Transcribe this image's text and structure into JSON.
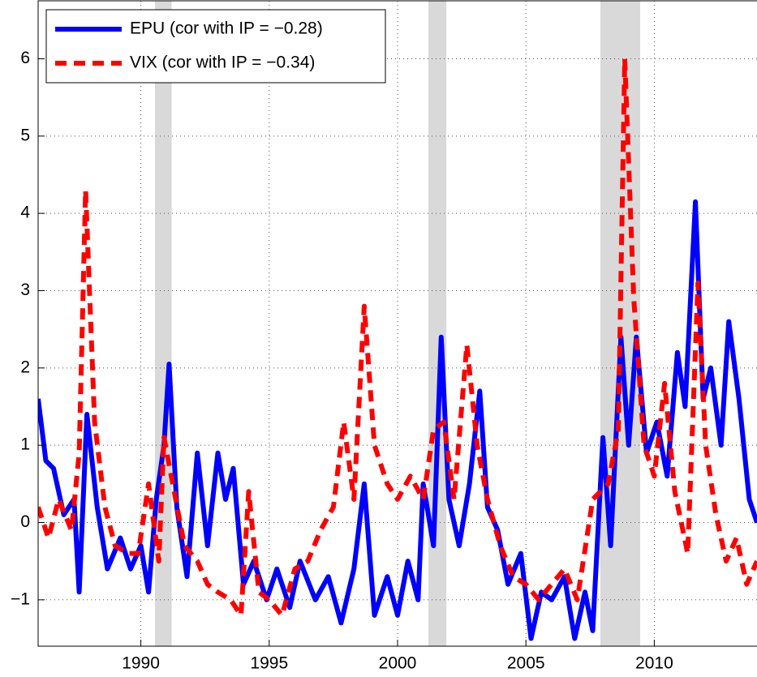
{
  "chart_data": {
    "type": "line",
    "xlim": [
      1986,
      2014
    ],
    "xticks": [
      1990,
      1995,
      2000,
      2005,
      2010
    ],
    "ylim": [
      -1.6,
      6.75
    ],
    "yticks": [
      {
        "value": -1,
        "label": "−1"
      },
      0,
      1,
      2,
      3,
      4,
      5,
      6
    ],
    "grid": true,
    "legend": "upper-left",
    "shaded_periods": [
      [
        1990.55,
        1991.2
      ],
      [
        2001.2,
        2001.9
      ],
      [
        2007.9,
        2009.45
      ]
    ],
    "shade_color": "#d9d9d9",
    "series": [
      {
        "name": "EPU (cor with IP = −0.28)",
        "color": "#0000ff",
        "dash": "solid",
        "x": [
          1986.0,
          1986.3,
          1986.6,
          1987.0,
          1987.4,
          1987.6,
          1987.9,
          1988.3,
          1988.7,
          1989.2,
          1989.6,
          1990.0,
          1990.3,
          1990.6,
          1990.9,
          1991.1,
          1991.4,
          1991.8,
          1992.2,
          1992.6,
          1993.0,
          1993.3,
          1993.6,
          1994.0,
          1994.4,
          1994.9,
          1995.3,
          1995.8,
          1996.2,
          1996.8,
          1997.3,
          1997.8,
          1998.3,
          1998.7,
          1999.1,
          1999.6,
          2000.0,
          2000.4,
          2000.8,
          2001.0,
          2001.4,
          2001.7,
          2002.0,
          2002.4,
          2002.8,
          2003.2,
          2003.5,
          2003.9,
          2004.3,
          2004.8,
          2005.2,
          2005.6,
          2006.0,
          2006.5,
          2006.9,
          2007.3,
          2007.6,
          2008.0,
          2008.3,
          2008.7,
          2009.0,
          2009.3,
          2009.7,
          2010.1,
          2010.5,
          2010.9,
          2011.2,
          2011.6,
          2011.9,
          2012.2,
          2012.6,
          2012.9,
          2013.3,
          2013.7,
          2014.0
        ],
        "values": [
          1.6,
          0.8,
          0.7,
          0.1,
          0.3,
          -0.9,
          1.4,
          0.2,
          -0.6,
          -0.2,
          -0.6,
          -0.3,
          -0.9,
          0.3,
          1.0,
          2.05,
          0.2,
          -0.7,
          0.9,
          -0.3,
          0.9,
          0.3,
          0.7,
          -0.8,
          -0.5,
          -1.0,
          -0.6,
          -1.1,
          -0.5,
          -1.0,
          -0.7,
          -1.3,
          -0.6,
          0.5,
          -1.2,
          -0.7,
          -1.2,
          -0.5,
          -1.0,
          0.5,
          -0.3,
          2.4,
          0.3,
          -0.3,
          0.5,
          1.7,
          0.2,
          -0.1,
          -0.8,
          -0.4,
          -1.5,
          -0.9,
          -1.0,
          -0.7,
          -1.5,
          -0.9,
          -1.4,
          1.1,
          -0.3,
          2.4,
          1.0,
          2.4,
          0.9,
          1.3,
          0.6,
          2.2,
          1.5,
          4.15,
          1.6,
          2.0,
          1.0,
          2.6,
          1.6,
          0.3,
          0.0
        ]
      },
      {
        "name": "VIX (cor with IP = −0.34)",
        "color": "#ff0000",
        "dash": "dashed",
        "x": [
          1986.0,
          1986.4,
          1986.8,
          1987.3,
          1987.6,
          1987.85,
          1988.2,
          1988.6,
          1989.0,
          1989.5,
          1989.9,
          1990.3,
          1990.7,
          1990.9,
          1991.3,
          1991.7,
          1992.2,
          1992.6,
          1993.0,
          1993.5,
          1993.9,
          1994.2,
          1994.6,
          1995.0,
          1995.5,
          1996.0,
          1996.5,
          1997.0,
          1997.5,
          1997.9,
          1998.3,
          1998.7,
          1999.1,
          1999.6,
          2000.0,
          2000.5,
          2001.0,
          2001.4,
          2001.8,
          2002.2,
          2002.7,
          2003.1,
          2003.5,
          2004.0,
          2004.5,
          2005.0,
          2005.5,
          2006.0,
          2006.5,
          2007.0,
          2007.6,
          2008.2,
          2008.6,
          2008.85,
          2009.2,
          2009.6,
          2010.0,
          2010.4,
          2010.8,
          2011.3,
          2011.7,
          2012.0,
          2012.4,
          2012.8,
          2013.2,
          2013.6,
          2014.0
        ],
        "values": [
          0.2,
          -0.2,
          0.3,
          -0.1,
          0.9,
          4.3,
          1.3,
          0.2,
          -0.3,
          -0.4,
          -0.4,
          0.5,
          -0.5,
          1.1,
          0.4,
          -0.3,
          -0.5,
          -0.8,
          -0.9,
          -1.0,
          -1.2,
          0.4,
          -0.9,
          -1.0,
          -1.2,
          -0.6,
          -0.5,
          -0.1,
          0.2,
          1.3,
          0.3,
          2.8,
          1.0,
          0.5,
          0.3,
          0.6,
          0.3,
          1.2,
          1.3,
          0.3,
          2.3,
          1.0,
          0.3,
          -0.3,
          -0.7,
          -0.8,
          -1.0,
          -0.8,
          -0.6,
          -1.0,
          0.3,
          0.5,
          1.2,
          6.0,
          2.9,
          1.0,
          0.6,
          1.8,
          0.4,
          -0.4,
          3.1,
          1.0,
          0.1,
          -0.5,
          -0.2,
          -0.8,
          -0.5
        ]
      }
    ]
  }
}
